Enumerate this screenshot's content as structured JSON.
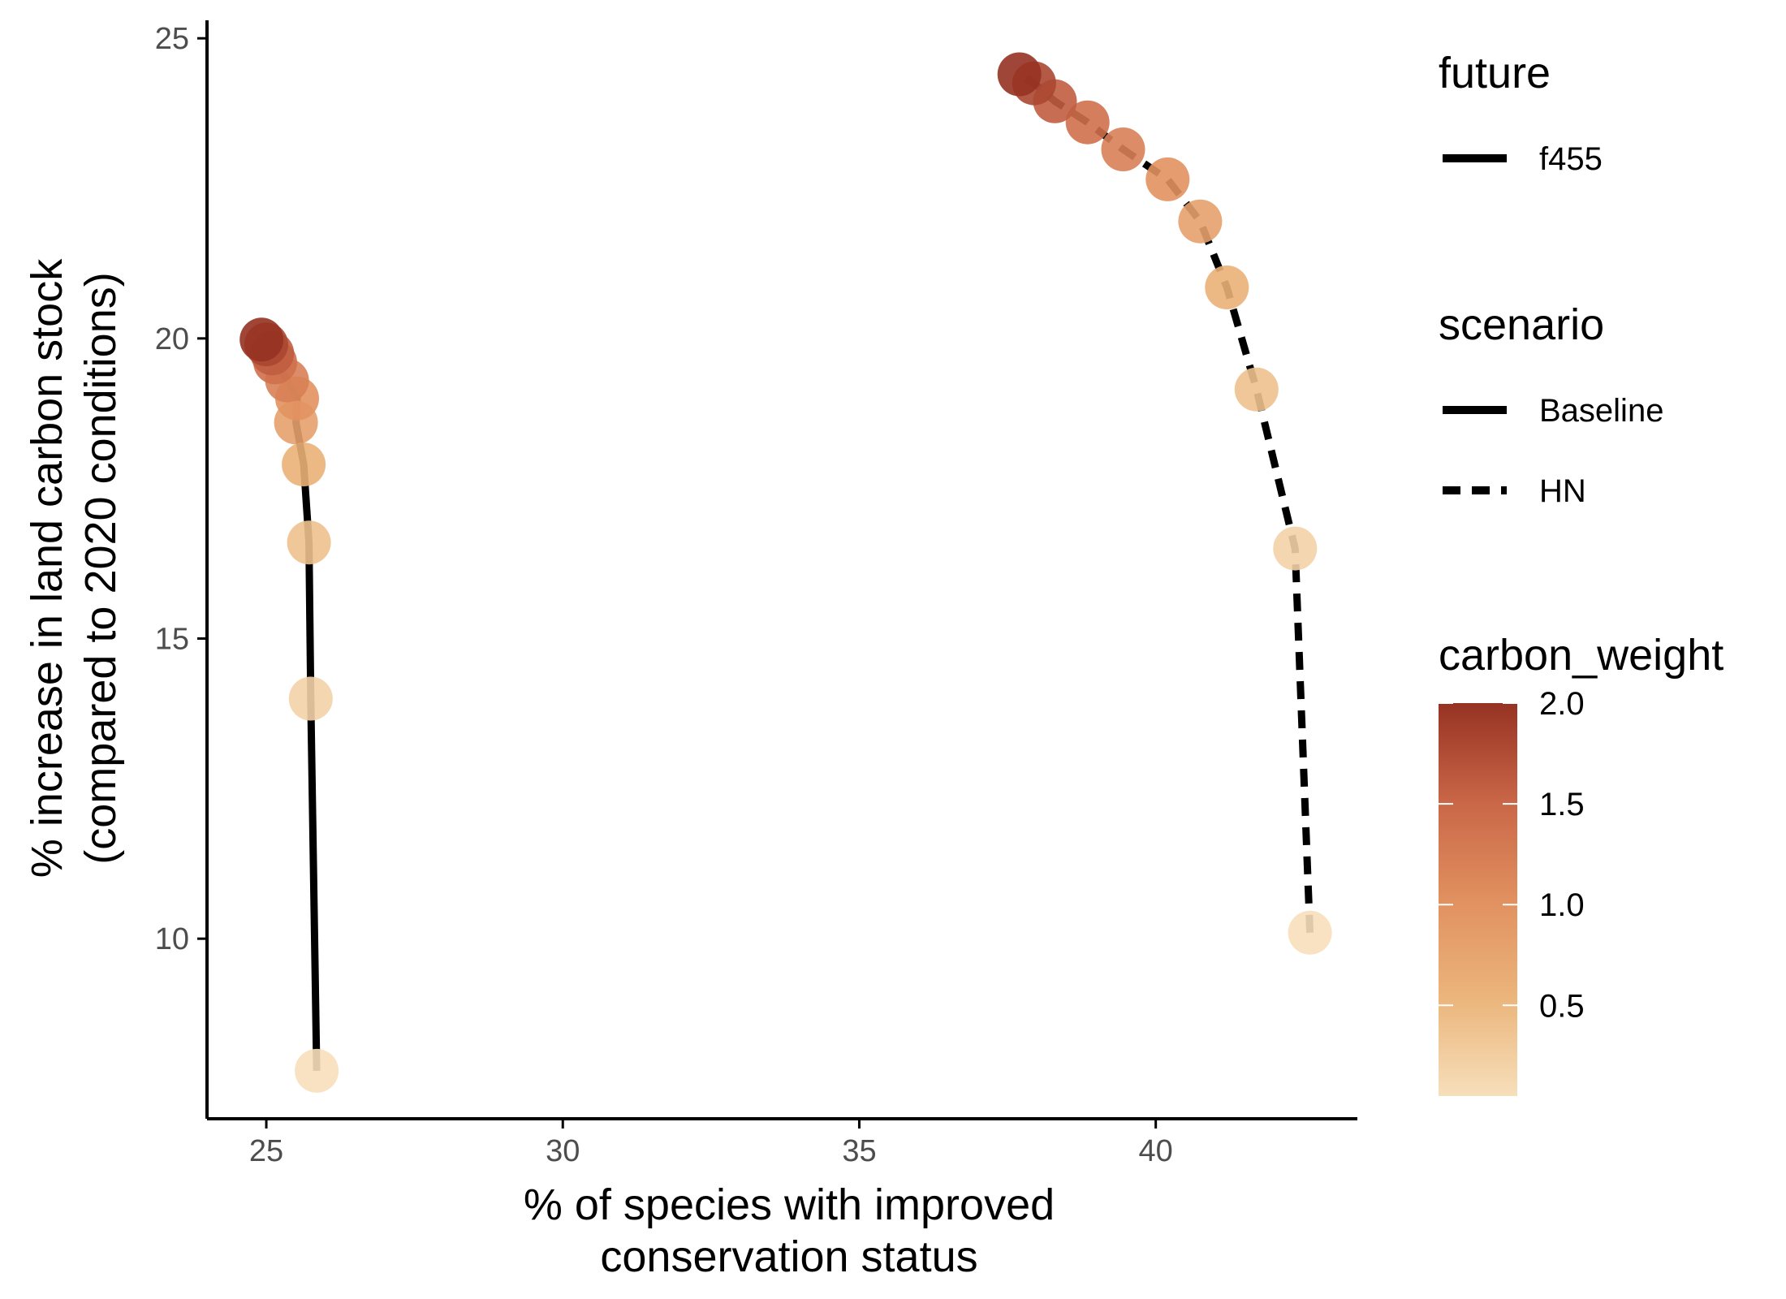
{
  "chart_data": {
    "type": "scatter",
    "xlabel_lines": [
      "% of species with improved",
      "conservation status"
    ],
    "ylabel_lines": [
      "% increase in land carbon stock",
      "(compared to 2020 conditions)"
    ],
    "xlim": [
      24.0,
      43.4
    ],
    "ylim": [
      7.0,
      25.3
    ],
    "x_ticks": [
      25,
      30,
      35,
      40
    ],
    "y_ticks": [
      10,
      15,
      20,
      25
    ],
    "grid": false,
    "legend_position": "right",
    "series": [
      {
        "name": "Baseline",
        "future": "f455",
        "line_style": "solid",
        "points": [
          {
            "x": 25.85,
            "y": 7.8,
            "w": 0.05
          },
          {
            "x": 25.75,
            "y": 14.0,
            "w": 0.2
          },
          {
            "x": 25.72,
            "y": 16.6,
            "w": 0.4
          },
          {
            "x": 25.63,
            "y": 17.9,
            "w": 0.6
          },
          {
            "x": 25.5,
            "y": 18.6,
            "w": 0.8
          },
          {
            "x": 25.52,
            "y": 19.0,
            "w": 1.0
          },
          {
            "x": 25.35,
            "y": 19.3,
            "w": 1.2
          },
          {
            "x": 25.15,
            "y": 19.6,
            "w": 1.4
          },
          {
            "x": 25.1,
            "y": 19.75,
            "w": 1.6
          },
          {
            "x": 25.0,
            "y": 19.9,
            "w": 1.8
          },
          {
            "x": 24.92,
            "y": 19.98,
            "w": 2.0
          }
        ]
      },
      {
        "name": "HN",
        "future": "f455",
        "line_style": "dashed",
        "points": [
          {
            "x": 42.6,
            "y": 10.1,
            "w": 0.05
          },
          {
            "x": 42.35,
            "y": 16.5,
            "w": 0.2
          },
          {
            "x": 41.7,
            "y": 19.15,
            "w": 0.4
          },
          {
            "x": 41.2,
            "y": 20.85,
            "w": 0.6
          },
          {
            "x": 40.75,
            "y": 21.95,
            "w": 0.8
          },
          {
            "x": 40.2,
            "y": 22.65,
            "w": 1.0
          },
          {
            "x": 39.45,
            "y": 23.15,
            "w": 1.2
          },
          {
            "x": 38.85,
            "y": 23.6,
            "w": 1.4
          },
          {
            "x": 38.3,
            "y": 23.95,
            "w": 1.6
          },
          {
            "x": 37.95,
            "y": 24.25,
            "w": 1.8
          },
          {
            "x": 37.7,
            "y": 24.4,
            "w": 2.0
          }
        ]
      }
    ],
    "legend": {
      "future": {
        "title": "future",
        "items": [
          {
            "label": "f455",
            "line_style": "solid"
          }
        ]
      },
      "scenario": {
        "title": "scenario",
        "items": [
          {
            "label": "Baseline",
            "line_style": "solid"
          },
          {
            "label": "HN",
            "line_style": "dashed"
          }
        ]
      },
      "carbon_weight": {
        "title": "carbon_weight",
        "range": [
          0.05,
          2.0
        ],
        "ticks": [
          "2.0",
          "1.5",
          "1.0",
          "0.5"
        ],
        "tick_values": [
          2.0,
          1.5,
          1.0,
          0.5
        ]
      }
    },
    "colors": {
      "color_low": "#f7dfbb",
      "color_mid_low": "#ebb57b",
      "color_mid": "#e1905f",
      "color_mid_high": "#c96647",
      "color_high": "#963222",
      "line": "#000000",
      "axis": "#000000",
      "tick_text": "#4d4d4d"
    }
  }
}
